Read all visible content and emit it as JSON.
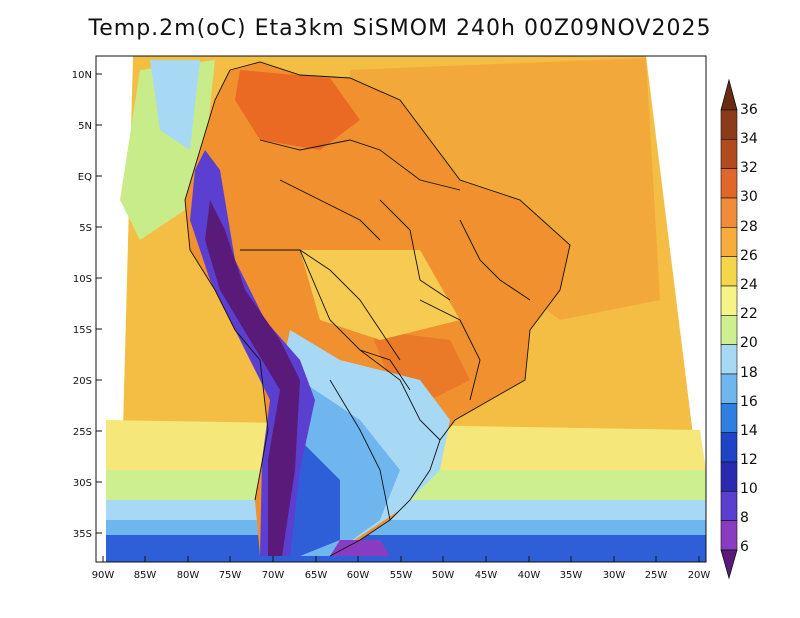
{
  "title": "Temp.2m(oC) Eta3km SiSMOM 240h 00Z09NOV2025",
  "lat_labels": [
    "10N",
    "5N",
    "EQ",
    "5S",
    "10S",
    "15S",
    "20S",
    "25S",
    "30S",
    "35S"
  ],
  "lon_labels": [
    "90W",
    "85W",
    "80W",
    "75W",
    "70W",
    "65W",
    "60W",
    "55W",
    "50W",
    "45W",
    "40W",
    "35W",
    "30W",
    "25W",
    "20W"
  ],
  "colorbar": {
    "labels": [
      "36",
      "34",
      "32",
      "30",
      "28",
      "26",
      "24",
      "22",
      "20",
      "18",
      "16",
      "14",
      "12",
      "10",
      "8",
      "6"
    ],
    "colors": [
      "#6b2a12",
      "#8b3a1a",
      "#b04a1f",
      "#e0662a",
      "#f08c3a",
      "#f7ac3c",
      "#f5d54a",
      "#f6f487",
      "#cdef8f",
      "#a7d9f5",
      "#6fb6ef",
      "#2f7fe0",
      "#1f44c8",
      "#2a2ab0",
      "#5a3fd0",
      "#8a3cc0",
      "#5a1a7a"
    ]
  }
}
